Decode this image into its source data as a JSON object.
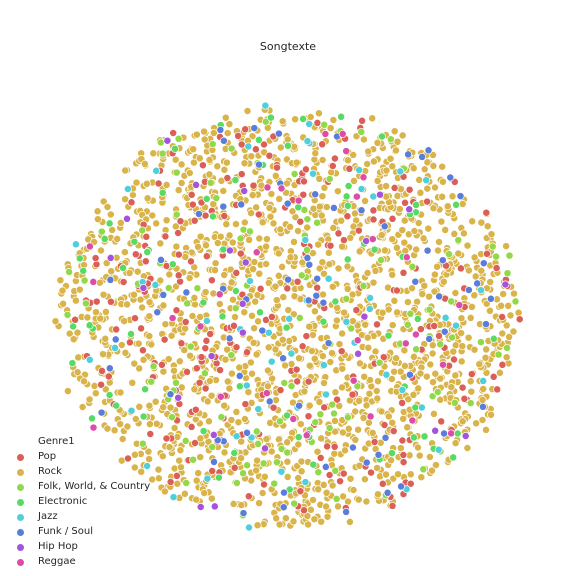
{
  "chart_data": {
    "type": "scatter",
    "title": "Songtexte",
    "xlabel": "",
    "ylabel": "",
    "axes_visible": false,
    "grid": false,
    "xlim": [
      -1.15,
      1.15
    ],
    "ylim": [
      -1.15,
      1.15
    ],
    "legend": {
      "title": "Genre1",
      "placement": "lower-left"
    },
    "series": [
      {
        "name": "Pop",
        "color": "#db5f57",
        "count": 260
      },
      {
        "name": "Rock",
        "color": "#d9b44a",
        "count": 1900
      },
      {
        "name": "Folk, World, & Country",
        "color": "#91d94a",
        "count": 120
      },
      {
        "name": "Electronic",
        "color": "#57db63",
        "count": 75
      },
      {
        "name": "Jazz",
        "color": "#4fcfdb",
        "count": 55
      },
      {
        "name": "Funk / Soul",
        "color": "#5a7ddb",
        "count": 75
      },
      {
        "name": "Hip Hop",
        "color": "#a653db",
        "count": 25
      },
      {
        "name": "Reggae",
        "color": "#db4ea8",
        "count": 30
      }
    ],
    "distribution": "roughly uniform points filling an approximately circular region"
  }
}
